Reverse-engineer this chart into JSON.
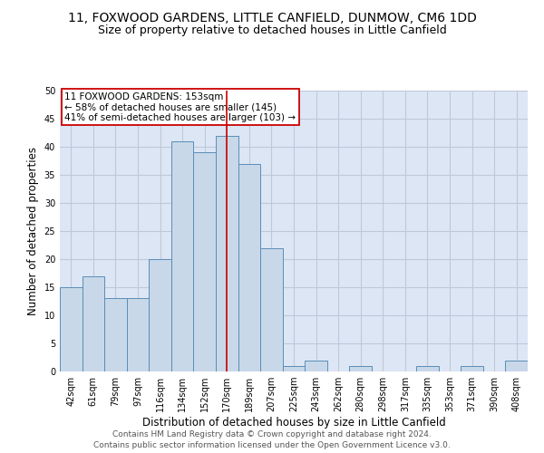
{
  "title1": "11, FOXWOOD GARDENS, LITTLE CANFIELD, DUNMOW, CM6 1DD",
  "title2": "Size of property relative to detached houses in Little Canfield",
  "xlabel": "Distribution of detached houses by size in Little Canfield",
  "ylabel": "Number of detached properties",
  "categories": [
    "42sqm",
    "61sqm",
    "79sqm",
    "97sqm",
    "116sqm",
    "134sqm",
    "152sqm",
    "170sqm",
    "189sqm",
    "207sqm",
    "225sqm",
    "243sqm",
    "262sqm",
    "280sqm",
    "298sqm",
    "317sqm",
    "335sqm",
    "353sqm",
    "371sqm",
    "390sqm",
    "408sqm"
  ],
  "values": [
    15,
    17,
    13,
    13,
    20,
    41,
    39,
    42,
    37,
    22,
    1,
    2,
    0,
    1,
    0,
    0,
    1,
    0,
    1,
    0,
    2
  ],
  "bar_color": "#c8d8e8",
  "bar_edge_color": "#5b8db8",
  "bar_edge_width": 0.7,
  "vline_x_idx": 7,
  "vline_color": "#cc0000",
  "annotation_text": "11 FOXWOOD GARDENS: 153sqm\n← 58% of detached houses are smaller (145)\n41% of semi-detached houses are larger (103) →",
  "annotation_box_color": "#ffffff",
  "annotation_box_edge_color": "#cc0000",
  "annotation_fontsize": 7.5,
  "ylim": [
    0,
    50
  ],
  "yticks": [
    0,
    5,
    10,
    15,
    20,
    25,
    30,
    35,
    40,
    45,
    50
  ],
  "grid_color": "#c0c8d8",
  "background_color": "#dce6f5",
  "footer1": "Contains HM Land Registry data © Crown copyright and database right 2024.",
  "footer2": "Contains public sector information licensed under the Open Government Licence v3.0.",
  "title_fontsize": 10,
  "subtitle_fontsize": 9,
  "xlabel_fontsize": 8.5,
  "ylabel_fontsize": 8.5,
  "tick_fontsize": 7,
  "footer_fontsize": 6.5
}
